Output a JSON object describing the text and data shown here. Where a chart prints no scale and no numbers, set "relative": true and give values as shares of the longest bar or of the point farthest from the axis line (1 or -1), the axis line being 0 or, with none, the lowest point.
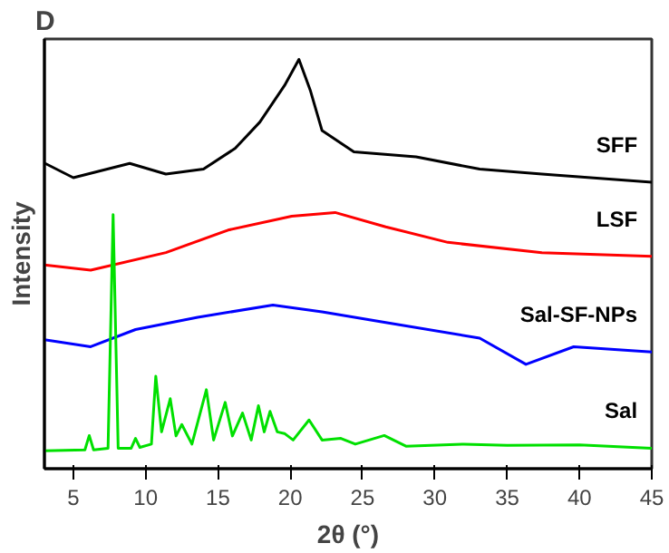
{
  "chart_data": {
    "type": "line",
    "title": "D",
    "xlabel": "2θ (°)",
    "ylabel": "Intensity",
    "relative": true,
    "xlim": [
      3,
      45
    ],
    "xticks": [
      5,
      10,
      15,
      20,
      25,
      30,
      35,
      40,
      45
    ],
    "grid": false,
    "marker": "none",
    "line_style": "solid",
    "series": [
      {
        "name": "SFF",
        "color": "#000000",
        "x": [
          3.05,
          5,
          8.9,
          11.4,
          14,
          16.2,
          17.9,
          19.6,
          20.6,
          21.4,
          22.2,
          24.4,
          28.7,
          33.1,
          37.4,
          45
        ],
        "values": [
          0.746,
          0.711,
          0.746,
          0.72,
          0.732,
          0.783,
          0.847,
          0.936,
          1,
          0.923,
          0.826,
          0.774,
          0.762,
          0.732,
          0.72,
          0.7
        ]
      },
      {
        "name": "LSF",
        "color": "#ff0000",
        "x": [
          3,
          6.2,
          11.4,
          15.7,
          20.1,
          23.1,
          26.6,
          30.9,
          37.4,
          45
        ],
        "values": [
          0.498,
          0.485,
          0.528,
          0.583,
          0.617,
          0.626,
          0.591,
          0.553,
          0.528,
          0.519
        ]
      },
      {
        "name": "Sal-SF-NPs",
        "color": "#0000ff",
        "x": [
          3,
          6.2,
          9.3,
          13.6,
          18.8,
          22.2,
          26.6,
          33.1,
          36.3,
          39.6,
          45
        ],
        "values": [
          0.315,
          0.298,
          0.34,
          0.37,
          0.4,
          0.383,
          0.357,
          0.319,
          0.255,
          0.298,
          0.285
        ]
      },
      {
        "name": "Sal",
        "color": "#00e000",
        "x": [
          3,
          5.8,
          6.1,
          6.4,
          7.4,
          7.75,
          8.1,
          9.0,
          9.3,
          9.6,
          10.4,
          10.7,
          11.1,
          11.7,
          12.1,
          12.5,
          13.2,
          14.2,
          14.7,
          15.5,
          16.0,
          16.7,
          17.3,
          17.8,
          18.2,
          18.6,
          19.1,
          19.6,
          20.2,
          21.3,
          22.2,
          23.5,
          24.5,
          26.5,
          28,
          32,
          35,
          40,
          45
        ],
        "values": [
          0.044,
          0.046,
          0.081,
          0.046,
          0.05,
          0.621,
          0.05,
          0.05,
          0.074,
          0.052,
          0.06,
          0.226,
          0.09,
          0.171,
          0.08,
          0.108,
          0.06,
          0.193,
          0.07,
          0.162,
          0.08,
          0.136,
          0.07,
          0.154,
          0.09,
          0.14,
          0.09,
          0.086,
          0.07,
          0.119,
          0.07,
          0.074,
          0.06,
          0.081,
          0.055,
          0.06,
          0.057,
          0.058,
          0.05
        ]
      }
    ]
  }
}
